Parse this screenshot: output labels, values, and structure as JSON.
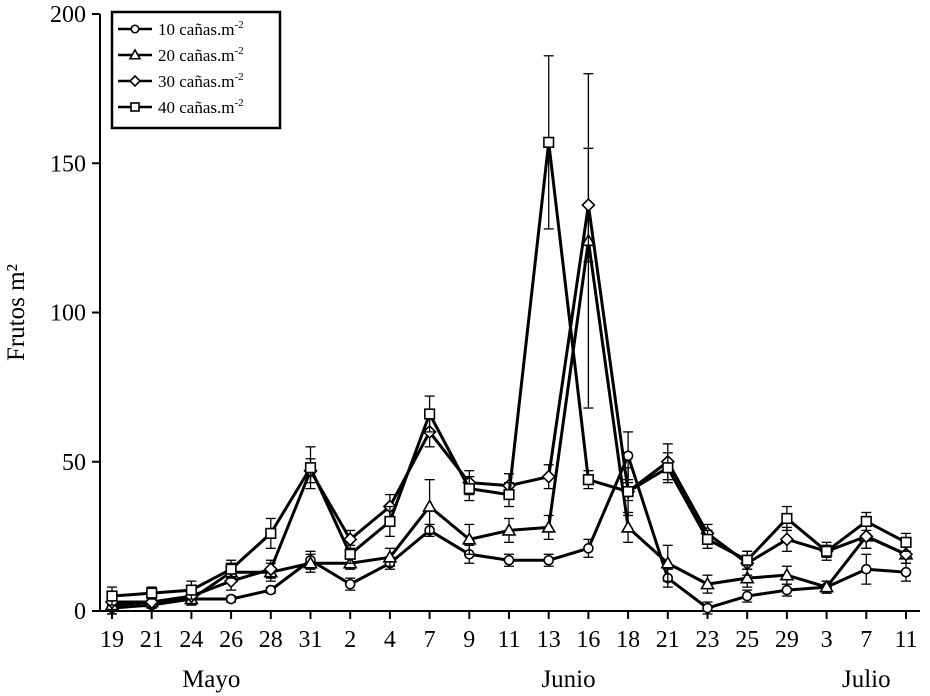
{
  "chart_data": {
    "type": "line",
    "title": "",
    "xlabel": "",
    "ylabel": "Frutos m²",
    "ylim": [
      0,
      200
    ],
    "yticks": [
      0,
      50,
      100,
      150,
      200
    ],
    "categories": [
      "19",
      "21",
      "24",
      "26",
      "28",
      "31",
      "2",
      "4",
      "7",
      "9",
      "11",
      "13",
      "16",
      "18",
      "21",
      "23",
      "25",
      "29",
      "3",
      "7",
      "11"
    ],
    "months": [
      {
        "label": "Mayo",
        "from": 0,
        "to": 5
      },
      {
        "label": "Junio",
        "from": 6,
        "to": 17
      },
      {
        "label": "Julio",
        "from": 18,
        "to": 20
      }
    ],
    "legend_position": "top-left",
    "grid": false,
    "series": [
      {
        "name": "10 cañas.m",
        "superscript": "-2",
        "marker": "circle",
        "values": [
          1,
          2,
          4,
          4,
          7,
          17,
          9,
          16,
          27,
          19,
          17,
          17,
          21,
          52,
          11,
          1,
          5,
          7,
          8,
          14,
          13
        ],
        "errors": [
          2,
          1,
          1,
          1,
          1,
          3,
          2,
          2,
          2,
          3,
          2,
          2,
          3,
          8,
          3,
          2,
          2,
          2,
          2,
          5,
          3
        ]
      },
      {
        "name": "20 cañas.m",
        "superscript": "-2",
        "marker": "triangle",
        "values": [
          2,
          3,
          4,
          13,
          13,
          16,
          16,
          18,
          35,
          24,
          27,
          28,
          124,
          28,
          16,
          9,
          11,
          12,
          8,
          25,
          19
        ],
        "errors": [
          3,
          2,
          2,
          3,
          3,
          3,
          2,
          3,
          9,
          5,
          4,
          4,
          56,
          5,
          6,
          3,
          3,
          3,
          2,
          4,
          3
        ]
      },
      {
        "name": "30 cañas.m",
        "superscript": "-2",
        "marker": "diamond",
        "values": [
          3,
          3,
          5,
          10,
          14,
          47,
          24,
          35,
          60,
          43,
          42,
          45,
          136,
          40,
          50,
          26,
          16,
          24,
          20,
          25,
          19
        ],
        "errors": [
          3,
          2,
          3,
          3,
          3,
          4,
          3,
          4,
          5,
          4,
          4,
          4,
          19,
          8,
          6,
          3,
          4,
          4,
          3,
          4,
          3
        ]
      },
      {
        "name": "40 cañas.m",
        "superscript": "-2",
        "marker": "square",
        "values": [
          5,
          6,
          7,
          14,
          26,
          48,
          19,
          30,
          66,
          41,
          39,
          157,
          44,
          40,
          48,
          24,
          17,
          31,
          20,
          30,
          23
        ],
        "errors": [
          3,
          2,
          3,
          3,
          5,
          7,
          3,
          5,
          6,
          4,
          4,
          29,
          3,
          3,
          5,
          3,
          3,
          4,
          2,
          3,
          3
        ]
      }
    ]
  }
}
